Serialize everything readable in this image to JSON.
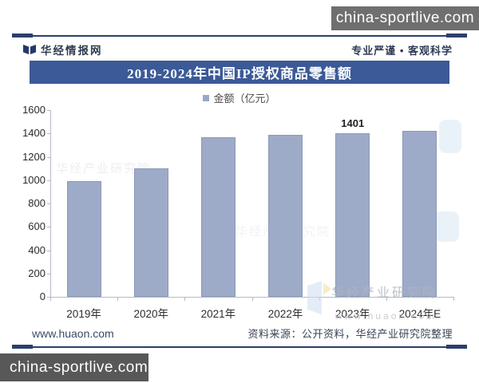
{
  "watermarks": {
    "site": "china-sportlive.com",
    "chart_watermark_text": "华经产业研究院",
    "chart_watermark_url": "www.huaon.com"
  },
  "header": {
    "brand": "华经情报网",
    "slogan": "专业严谨 • 客观科学"
  },
  "legend": {
    "label": "金额（亿元）",
    "marker_color": "#9aa8c8"
  },
  "footer": {
    "left": "www.huaon.com",
    "right": "资料来源：公开资料，华经产业研究院整理"
  },
  "colors": {
    "accent_navy": "#2c3e6b",
    "banner_bg": "#3b5a97",
    "bar_fill": "#9dabc9",
    "axis": "#b5bac4",
    "watermark_box_top": "#6f6f6f",
    "watermark_box_bottom": "#585858"
  },
  "chart_data": {
    "type": "bar",
    "title": "2019-2024年中国IP授权商品零售额",
    "categories": [
      "2019年",
      "2020年",
      "2021年",
      "2022年",
      "2023年",
      "2024年E"
    ],
    "values": [
      990,
      1100,
      1370,
      1390,
      1401,
      1425
    ],
    "data_labels": [
      null,
      null,
      null,
      null,
      "1401",
      null
    ],
    "legend": [
      "金额（亿元）"
    ],
    "xlabel": "",
    "ylabel": "",
    "ylim": [
      0,
      1600
    ],
    "ytick_step": 200,
    "grid": false,
    "legend_position": "top",
    "bar_color": "#9dabc9"
  }
}
